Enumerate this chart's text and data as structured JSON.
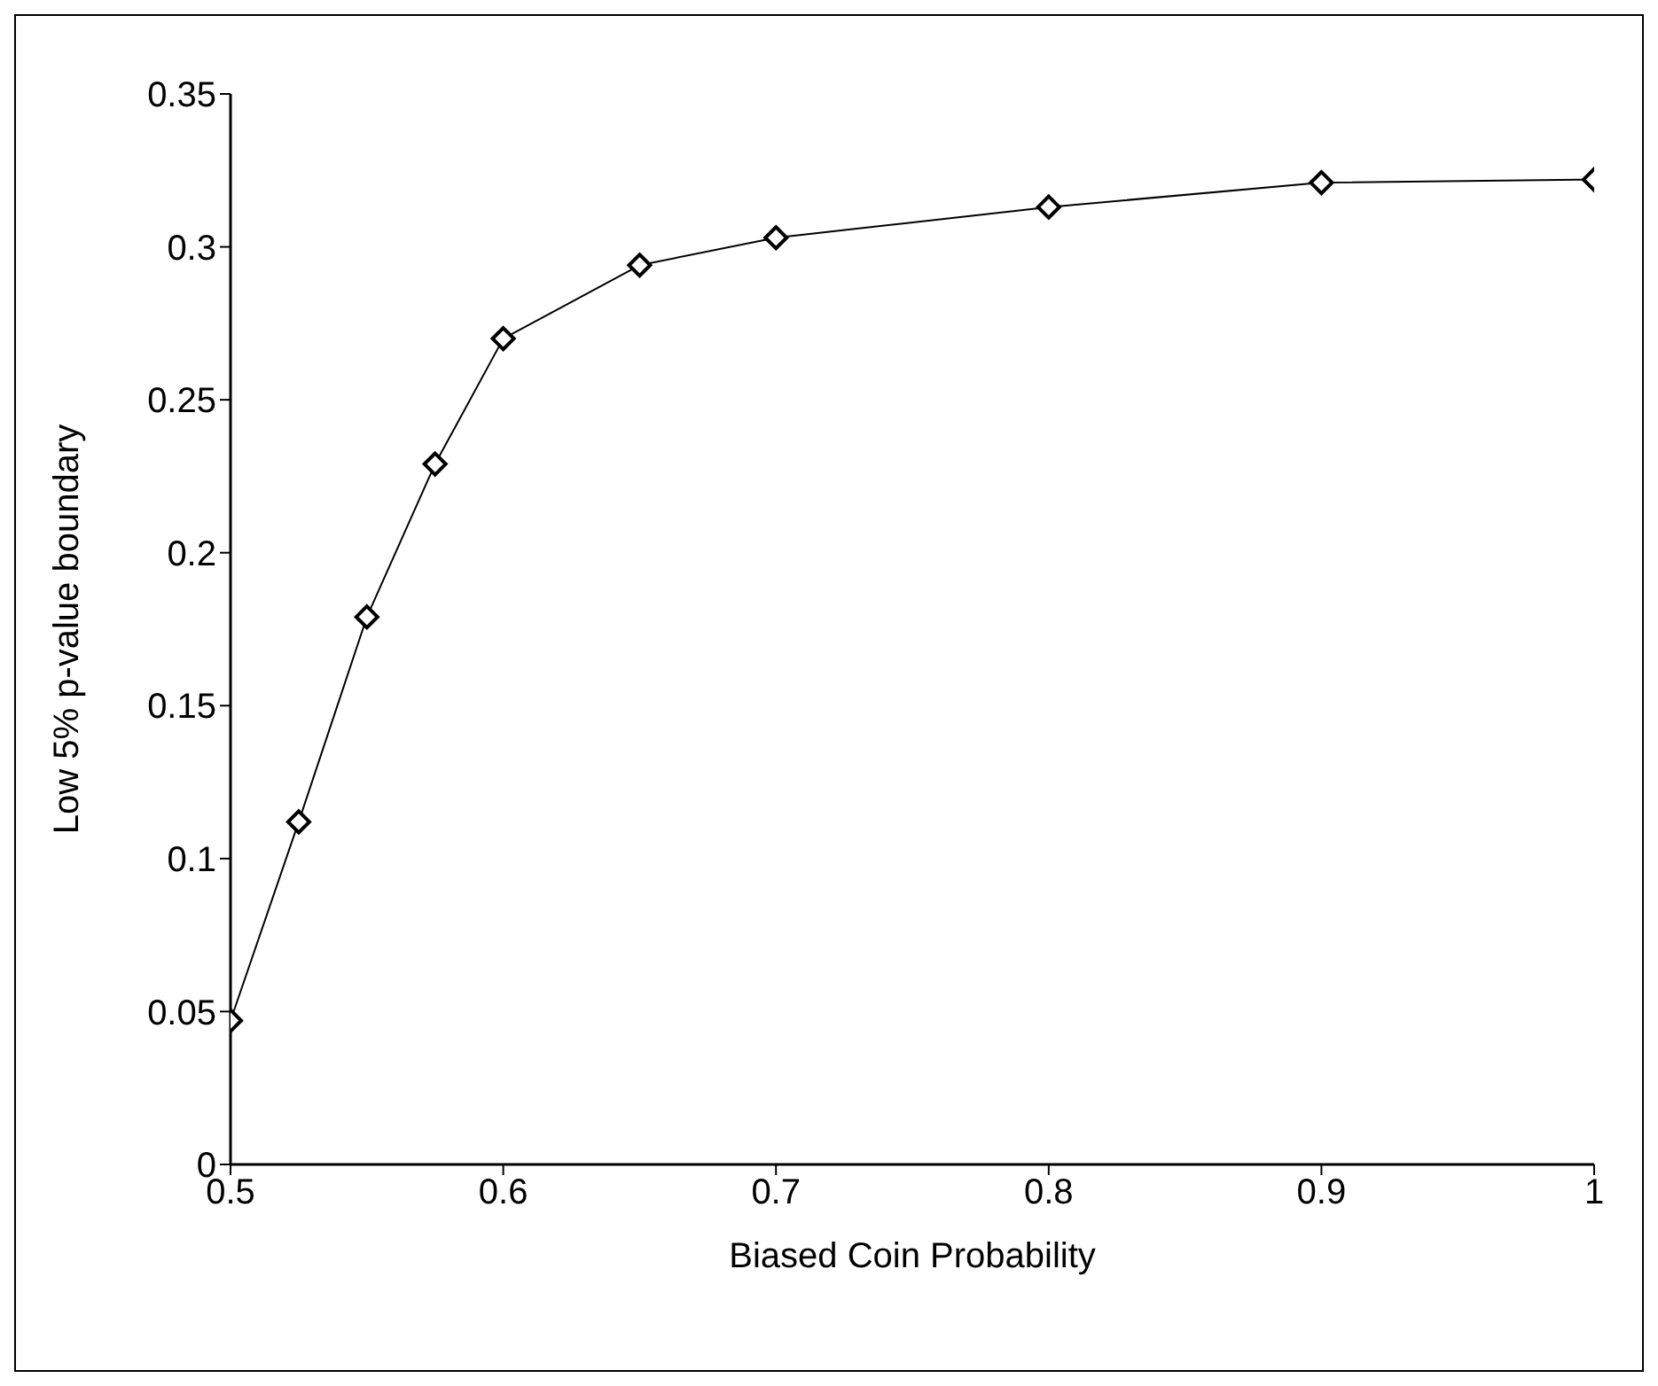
{
  "chart_data": {
    "type": "line",
    "xlabel": "Biased Coin Probability",
    "ylabel": "Low 5% p-value boundary",
    "x": [
      0.5,
      0.525,
      0.55,
      0.575,
      0.6,
      0.65,
      0.7,
      0.8,
      0.9,
      1
    ],
    "series": [
      {
        "color": "#000000",
        "values": [
          0.047,
          0.112,
          0.179,
          0.229,
          0.27,
          0.294,
          0.303,
          0.313,
          0.321,
          0.322
        ]
      }
    ],
    "xlim": [
      0.5,
      1
    ],
    "xticks": [
      0.5,
      0.6,
      0.7,
      0.8,
      0.9,
      1
    ],
    "ylim": [
      0,
      0.35
    ],
    "yticks": [
      0,
      0.05,
      0.1,
      0.15,
      0.2,
      0.25,
      0.3,
      0.35
    ],
    "grid": false,
    "legend": false,
    "marker": "diamond",
    "line_style": "solid"
  }
}
